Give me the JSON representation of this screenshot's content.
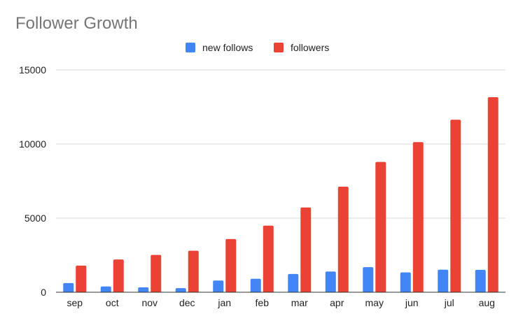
{
  "chart_data": {
    "type": "bar",
    "title": "Follower Growth",
    "categories": [
      "sep",
      "oct",
      "nov",
      "dec",
      "jan",
      "feb",
      "mar",
      "apr",
      "may",
      "jun",
      "jul",
      "aug"
    ],
    "series": [
      {
        "name": "new follows",
        "color": "#4285f4",
        "values": [
          620,
          390,
          330,
          280,
          790,
          910,
          1230,
          1400,
          1690,
          1340,
          1520,
          1510
        ]
      },
      {
        "name": "followers",
        "color": "#ea4335",
        "values": [
          1800,
          2210,
          2520,
          2800,
          3590,
          4490,
          5720,
          7120,
          8790,
          10130,
          11640,
          13160
        ]
      }
    ],
    "ylim": [
      0,
      15000
    ],
    "yticks": [
      0,
      5000,
      10000,
      15000
    ],
    "grid": true,
    "legend_position": "top"
  }
}
